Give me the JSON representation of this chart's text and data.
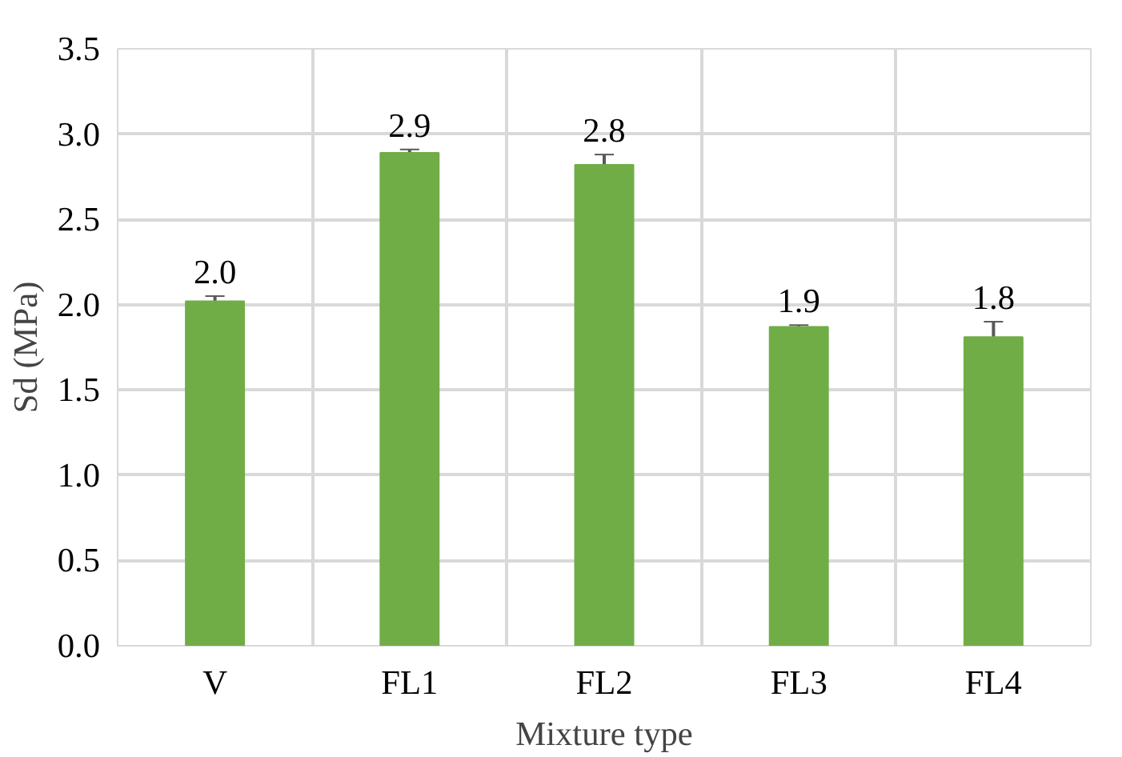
{
  "chart_data": {
    "type": "bar",
    "xlabel": "Mixture type",
    "ylabel": "Sd (MPa)",
    "categories": [
      "V",
      "FL1",
      "FL2",
      "FL3",
      "FL4"
    ],
    "values": [
      2.02,
      2.89,
      2.82,
      1.87,
      1.81
    ],
    "errors": [
      0.03,
      0.02,
      0.06,
      0.01,
      0.09
    ],
    "value_labels": [
      "2.0",
      "2.9",
      "2.8",
      "1.9",
      "1.8"
    ],
    "color": "#70ad47",
    "ylim": [
      0,
      3.5
    ],
    "yticks": [
      {
        "value": 0,
        "label": "0.0"
      },
      0.5,
      {
        "value": 1,
        "label": "1.0"
      },
      1.5,
      {
        "value": 2,
        "label": "2.0"
      },
      2.5,
      {
        "value": 3,
        "label": "3.0"
      },
      3.5
    ],
    "grid": true
  }
}
